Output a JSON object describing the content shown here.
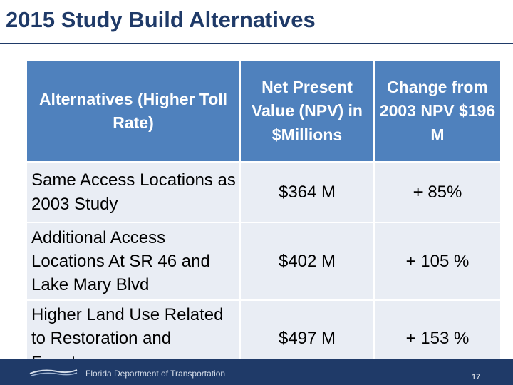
{
  "slide": {
    "title": "2015 Study Build Alternatives",
    "page_number": "17"
  },
  "footer": {
    "organization": "Florida Department of Transportation",
    "logo_icon": "fdot-logo-icon"
  },
  "table": {
    "headers": [
      "Alternatives (Higher Toll Rate)",
      "Net Present Value (NPV) in $Millions",
      "Change from 2003 NPV $196 M"
    ],
    "rows": [
      {
        "alternative": "Same Access Locations as 2003 Study",
        "npv": "$364 M",
        "change": "+ 85%"
      },
      {
        "alternative": "Additional Access Locations At SR 46 and Lake Mary Blvd",
        "npv": "$402 M",
        "change": "+ 105 %"
      },
      {
        "alternative": "Higher Land Use Related to Restoration and Farmton",
        "npv": "$497 M",
        "change": "+ 153 %"
      }
    ]
  },
  "colors": {
    "title": "#1f3a68",
    "header_bg": "#4f81bd",
    "cell_bg": "#e9edf4",
    "footer_bg": "#1f3a68"
  }
}
